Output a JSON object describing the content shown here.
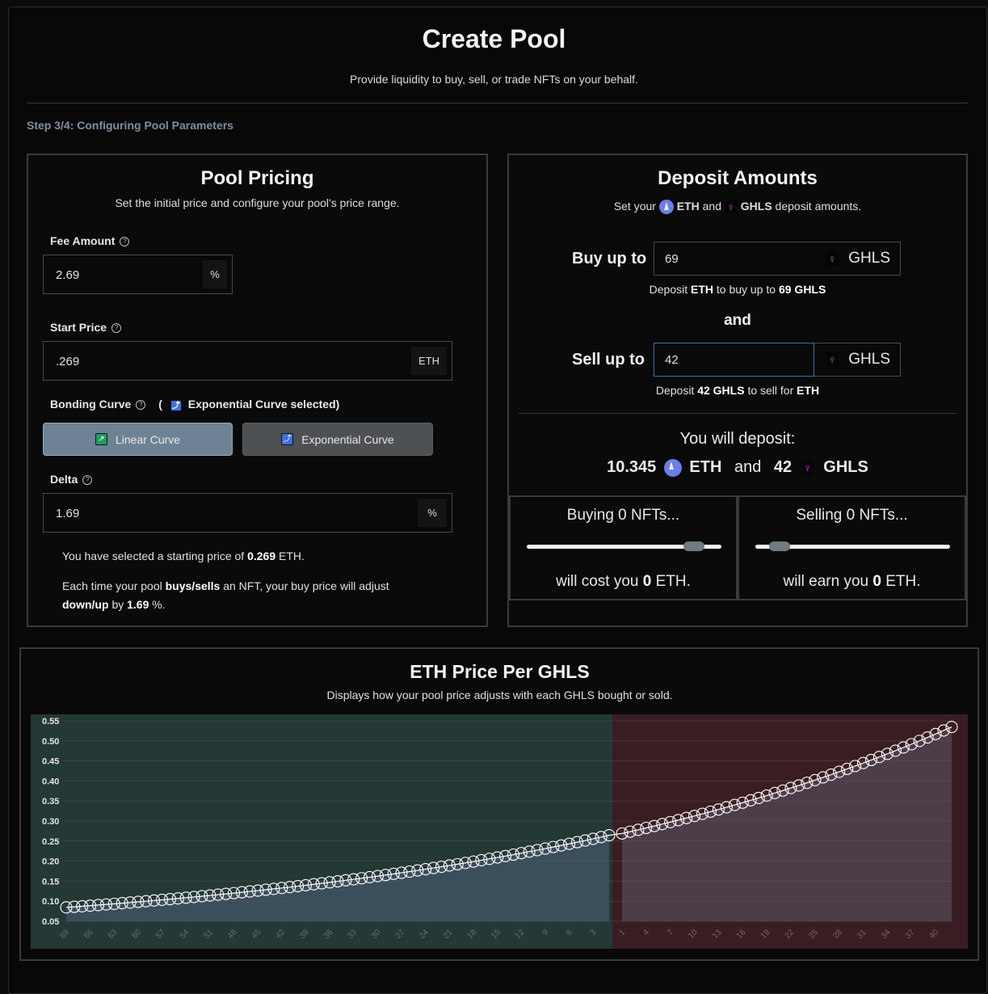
{
  "header": {
    "title": "Create Pool",
    "subtitle": "Provide liquidity to buy, sell, or trade NFTs on your behalf.",
    "step": "Step 3/4: Configuring Pool Parameters"
  },
  "pricing": {
    "title": "Pool Pricing",
    "subtitle": "Set the initial price and configure your pool's price range.",
    "fee_label": "Fee Amount",
    "fee_value": "2.69",
    "fee_unit": "%",
    "start_label": "Start Price",
    "start_value": ".269",
    "start_unit": "ETH",
    "curve_label": "Bonding Curve",
    "curve_selected_prefix": "(",
    "curve_selected_text": "Exponential Curve selected)",
    "linear_label": "Linear Curve",
    "exponential_label": "Exponential Curve",
    "delta_label": "Delta",
    "delta_value": "1.69",
    "delta_unit": "%",
    "info1_pre": "You have selected a starting price of",
    "info1_val": "0.269",
    "info1_post": "ETH.",
    "info2_pre": "Each time your pool",
    "info2_bold1": "buys/sells",
    "info2_mid": "an NFT, your buy price will adjust",
    "info2_bold2": "down/up",
    "info2_by": "by",
    "info2_val": "1.69",
    "info2_post": "%."
  },
  "deposit": {
    "title": "Deposit Amounts",
    "sub_pre": "Set your",
    "sub_eth": "ETH",
    "sub_and": "and",
    "sub_ghls": "GHLS",
    "sub_post": "deposit amounts.",
    "buy_label": "Buy up to",
    "buy_value": "69",
    "buy_unit": "GHLS",
    "buy_note_pre": "Deposit",
    "buy_note_eth": "ETH",
    "buy_note_mid": "to buy up to",
    "buy_note_val": "69 GHLS",
    "and_label": "and",
    "sell_label": "Sell up to",
    "sell_value": "42",
    "sell_unit": "GHLS",
    "sell_note_pre": "Deposit",
    "sell_note_val": "42 GHLS",
    "sell_note_mid": "to sell for",
    "sell_note_eth": "ETH",
    "will_deposit": "You will deposit:",
    "total_eth": "10.345",
    "total_eth_unit": "ETH",
    "total_and": "and",
    "total_ghls": "42",
    "total_ghls_unit": "GHLS",
    "buying_title": "Buying 0 NFTs...",
    "buying_foot_pre": "will cost you",
    "buying_foot_val": "0",
    "buying_foot_post": "ETH.",
    "buying_slider": 0.9,
    "selling_title": "Selling 0 NFTs...",
    "selling_foot_pre": "will earn you",
    "selling_foot_val": "0",
    "selling_foot_post": "ETH.",
    "selling_slider": 0.08
  },
  "chart_data": {
    "type": "line",
    "title": "ETH Price Per GHLS",
    "subtitle": "Displays how your pool price adjusts with each GHLS bought or sold.",
    "start_price": 0.269,
    "delta_pct": 1.69,
    "buy_count": 69,
    "sell_count": 42,
    "ylim": [
      0.05,
      0.55
    ],
    "yticks": [
      "0.55",
      "0.50",
      "0.45",
      "0.40",
      "0.35",
      "0.30",
      "0.25",
      "0.20",
      "0.15",
      "0.10",
      "0.05"
    ],
    "xtick_labels_buy": [
      "69",
      "66",
      "63",
      "60",
      "57",
      "54",
      "51",
      "48",
      "45",
      "42",
      "39",
      "36",
      "33",
      "30",
      "27",
      "24",
      "21",
      "18",
      "15",
      "12",
      "9",
      "6",
      "3"
    ],
    "xtick_labels_sell": [
      "1",
      "4",
      "7",
      "10",
      "13",
      "16",
      "19",
      "22",
      "25",
      "28",
      "31",
      "34",
      "37",
      "40"
    ],
    "colors": {
      "buy_bg": "#243836",
      "buy_fill": "#3b4e5c",
      "sell_bg": "#3a1d22",
      "sell_fill": "#4d3d48",
      "grid": "#5a5a5a"
    }
  }
}
